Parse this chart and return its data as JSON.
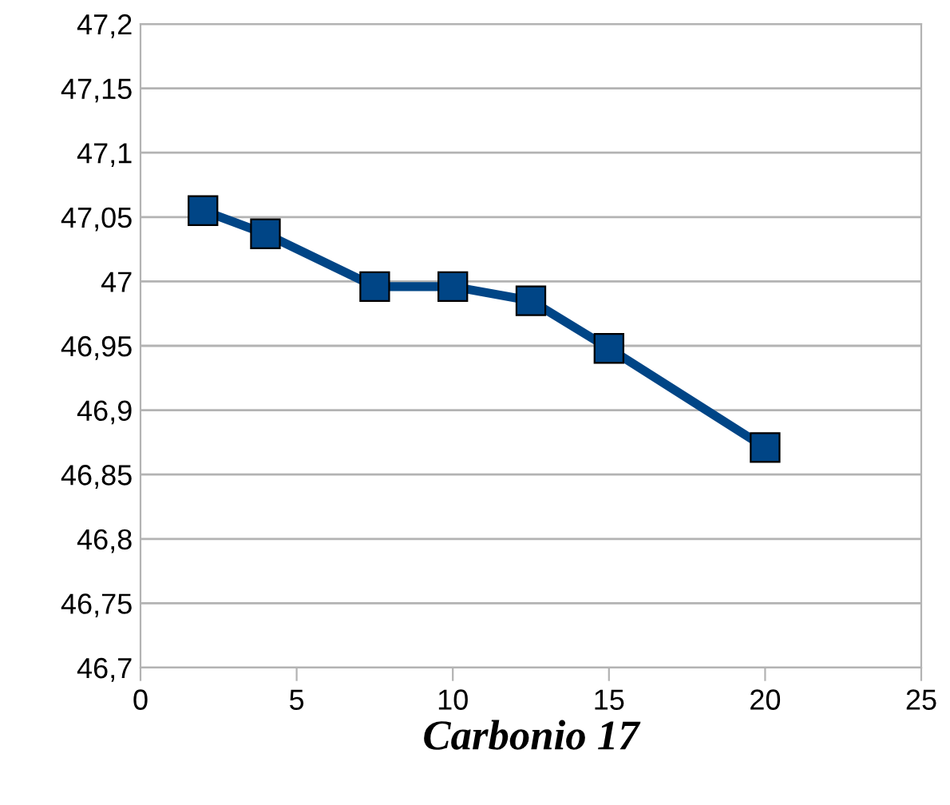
{
  "chart_data": {
    "type": "line",
    "xlabel": "Carbonio 17",
    "x": [
      2,
      4,
      7.5,
      10,
      12.5,
      15,
      20
    ],
    "series": [
      {
        "color": "#004586",
        "values": [
          47.055,
          47.037,
          46.996,
          46.996,
          46.985,
          46.948,
          46.871
        ]
      }
    ],
    "xlim": [
      0,
      25
    ],
    "xticks": [
      0,
      5,
      10,
      15,
      20,
      25
    ],
    "ylim": [
      46.7,
      47.2
    ],
    "yticks": [
      {
        "value": 46.7,
        "label": "46,7"
      },
      {
        "value": 46.75,
        "label": "46,75"
      },
      {
        "value": 46.8,
        "label": "46,8"
      },
      {
        "value": 46.85,
        "label": "46,85"
      },
      {
        "value": 46.9,
        "label": "46,9"
      },
      {
        "value": 46.95,
        "label": "46,95"
      },
      {
        "value": 47,
        "label": "47"
      },
      {
        "value": 47.05,
        "label": "47,05"
      },
      {
        "value": 47.1,
        "label": "47,1"
      },
      {
        "value": 47.15,
        "label": "47,15"
      },
      {
        "value": 47.2,
        "label": "47,2"
      }
    ],
    "grid": "y",
    "marker": "square",
    "line_style": "solid",
    "legend": false
  }
}
